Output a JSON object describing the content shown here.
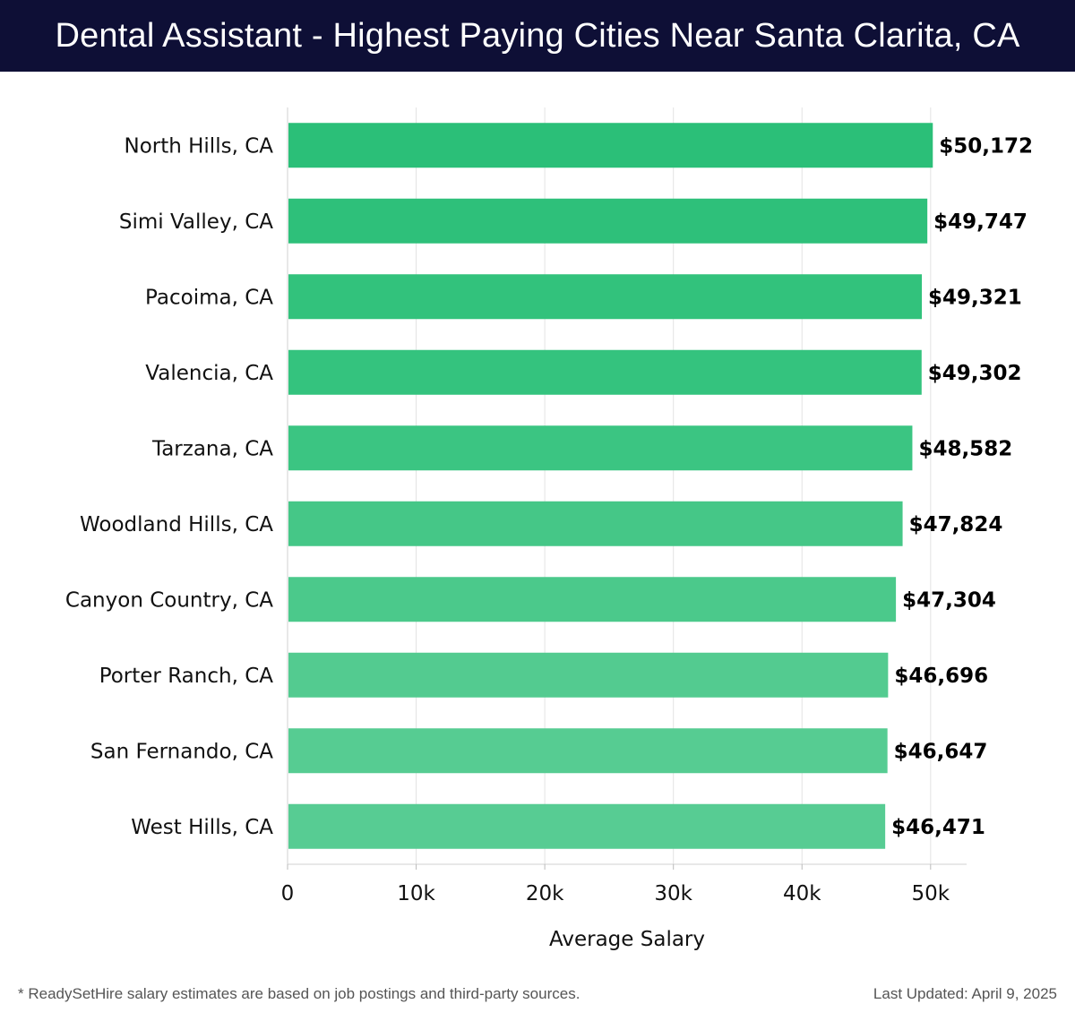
{
  "header": {
    "title": "Dental Assistant - Highest Paying Cities Near Santa Clarita, CA"
  },
  "chart_data": {
    "type": "bar",
    "orientation": "horizontal",
    "title": "Dental Assistant - Highest Paying Cities Near Santa Clarita, CA",
    "categories": [
      "North Hills, CA",
      "Simi Valley, CA",
      "Pacoima, CA",
      "Valencia, CA",
      "Tarzana, CA",
      "Woodland Hills, CA",
      "Canyon Country, CA",
      "Porter Ranch, CA",
      "San Fernando, CA",
      "West Hills, CA"
    ],
    "values": [
      50172,
      49747,
      49321,
      49302,
      48582,
      47824,
      47304,
      46696,
      46647,
      46471
    ],
    "value_labels": [
      "$50,172",
      "$49,747",
      "$49,321",
      "$49,302",
      "$48,582",
      "$47,824",
      "$47,304",
      "$46,696",
      "$46,647",
      "$46,471"
    ],
    "xlabel": "Average Salary",
    "ylabel": "",
    "xlim": [
      0,
      52800
    ],
    "xticks": [
      0,
      10000,
      20000,
      30000,
      40000,
      50000
    ],
    "xtick_labels": [
      "0",
      "10k",
      "20k",
      "30k",
      "40k",
      "50k"
    ],
    "grid": true,
    "bar_colors": [
      "#2bbf78",
      "#2ec07a",
      "#32c27c",
      "#34c37e",
      "#3bc582",
      "#45c787",
      "#4bc98b",
      "#53cb90",
      "#56cc92",
      "#57cc93"
    ]
  },
  "footer": {
    "note": "* ReadySetHire salary estimates are based on job postings and third-party sources.",
    "updated": "Last Updated: April 9, 2025"
  }
}
